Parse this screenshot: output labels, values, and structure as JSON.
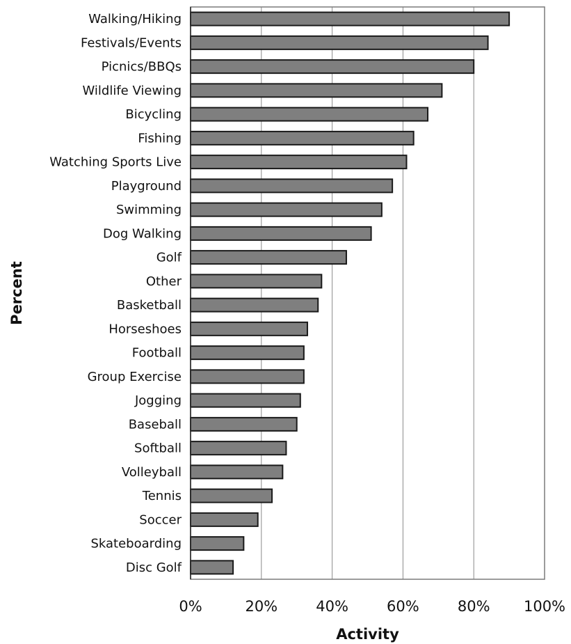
{
  "chart_data": {
    "type": "bar",
    "orientation": "horizontal",
    "categories": [
      "Walking/Hiking",
      "Festivals/Events",
      "Picnics/BBQs",
      "Wildlife Viewing",
      "Bicycling",
      "Fishing",
      "Watching Sports Live",
      "Playground",
      "Swimming",
      "Dog Walking",
      "Golf",
      "Other",
      "Basketball",
      "Horseshoes",
      "Football",
      "Group Exercise",
      "Jogging",
      "Baseball",
      "Softball",
      "Volleyball",
      "Tennis",
      "Soccer",
      "Skateboarding",
      "Disc Golf"
    ],
    "values": [
      90,
      84,
      80,
      71,
      67,
      63,
      61,
      57,
      54,
      51,
      44,
      37,
      36,
      33,
      32,
      32,
      31,
      30,
      27,
      26,
      23,
      19,
      15,
      12
    ],
    "xlabel": "Activity",
    "ylabel": "Percent",
    "xlim": [
      0,
      100
    ],
    "x_ticks": [
      "0%",
      "20%",
      "40%",
      "60%",
      "80%",
      "100%"
    ],
    "grid": true,
    "colors": {
      "bar_fill": "#7f7f7f",
      "bar_stroke": "#1a1a1a",
      "grid": "#8a8a8a"
    }
  }
}
